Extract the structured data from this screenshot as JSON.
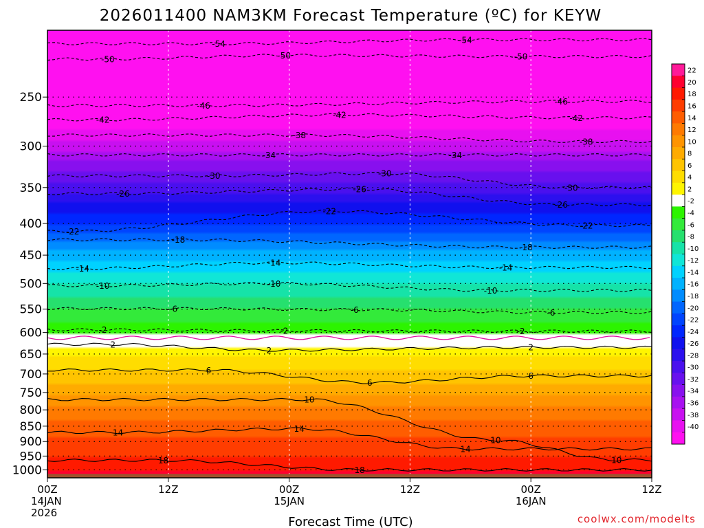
{
  "chart_data": {
    "type": "heatmap",
    "title": "2026011400 NAM3KM Forecast Temperature (ºC) for KEYW",
    "xlabel": "Forecast Time (UTC)",
    "ylabel": "",
    "credit": "coolwx.com/modelts",
    "x_axis": {
      "unit": "forecast hours",
      "range": [
        0,
        60
      ],
      "ticks": [
        {
          "hour": 0,
          "lines": [
            "00Z",
            "14JAN",
            "2026"
          ]
        },
        {
          "hour": 12,
          "lines": [
            "12Z"
          ]
        },
        {
          "hour": 24,
          "lines": [
            "00Z",
            "15JAN"
          ]
        },
        {
          "hour": 36,
          "lines": [
            "12Z"
          ]
        },
        {
          "hour": 48,
          "lines": [
            "00Z",
            "16JAN"
          ]
        },
        {
          "hour": 60,
          "lines": [
            "12Z"
          ]
        }
      ]
    },
    "y_axis": {
      "unit": "hPa",
      "scale": "log",
      "range": [
        1030,
        195
      ],
      "ticks": [
        250,
        300,
        350,
        400,
        450,
        500,
        550,
        600,
        650,
        700,
        750,
        800,
        850,
        900,
        950,
        1000
      ]
    },
    "surface_pressure_hPa": 1015,
    "levels_hPa": [
      195,
      200,
      250,
      300,
      350,
      400,
      450,
      500,
      550,
      600,
      650,
      700,
      750,
      800,
      850,
      900,
      950,
      1000,
      1015
    ],
    "temperature_profile_C": [
      -56,
      -55,
      -46,
      -37,
      -29,
      -22,
      -15,
      -10,
      -6,
      -2.2,
      3.5,
      6.5,
      9.5,
      12.5,
      15,
      16.5,
      18,
      20,
      21
    ],
    "colorbar": {
      "labels": [
        22,
        20,
        18,
        16,
        14,
        12,
        10,
        8,
        6,
        4,
        2,
        -2,
        -4,
        -6,
        -8,
        -10,
        -12,
        -14,
        -16,
        -18,
        -20,
        -22,
        -24,
        -26,
        -28,
        -30,
        -32,
        -34,
        -36,
        -38,
        -40
      ],
      "colors": [
        "#ff1a99",
        "#ff0030",
        "#ff1a00",
        "#ff3d00",
        "#ff5d00",
        "#ff7a00",
        "#ff9400",
        "#ffab00",
        "#ffc400",
        "#ffdd00",
        "#fff500",
        "#ffffff",
        "#2cf400",
        "#33ea3a",
        "#26e06e",
        "#16e3a8",
        "#10e6d7",
        "#00d2ff",
        "#00b2ff",
        "#008cff",
        "#0066ff",
        "#0044ff",
        "#0026ff",
        "#1010ee",
        "#2c10ee",
        "#4a10ee",
        "#6810ee",
        "#8810ee",
        "#a810f0",
        "#c810f0",
        "#e810f0",
        "#ff10f0"
      ]
    },
    "contour_labels": [
      {
        "value": "-54",
        "hour": 17.0,
        "p": 205
      },
      {
        "value": "-54",
        "hour": 41.5,
        "p": 202
      },
      {
        "value": "-50",
        "hour": 6.0,
        "p": 217
      },
      {
        "value": "-50",
        "hour": 23.5,
        "p": 214
      },
      {
        "value": "-50",
        "hour": 47.0,
        "p": 215
      },
      {
        "value": "-46",
        "hour": 15.5,
        "p": 258
      },
      {
        "value": "-46",
        "hour": 51.0,
        "p": 254
      },
      {
        "value": "-42",
        "hour": 5.5,
        "p": 272
      },
      {
        "value": "-42",
        "hour": 29.0,
        "p": 267
      },
      {
        "value": "-42",
        "hour": 52.5,
        "p": 270
      },
      {
        "value": "-38",
        "hour": 25.0,
        "p": 288
      },
      {
        "value": "-38",
        "hour": 53.5,
        "p": 295
      },
      {
        "value": "-34",
        "hour": 22.0,
        "p": 310
      },
      {
        "value": "-34",
        "hour": 40.5,
        "p": 310
      },
      {
        "value": "-30",
        "hour": 16.5,
        "p": 335
      },
      {
        "value": "-30",
        "hour": 33.5,
        "p": 332
      },
      {
        "value": "-30",
        "hour": 52.0,
        "p": 350
      },
      {
        "value": "-26",
        "hour": 7.5,
        "p": 358
      },
      {
        "value": "-26",
        "hour": 31.0,
        "p": 352
      },
      {
        "value": "-26",
        "hour": 51.0,
        "p": 373
      },
      {
        "value": "-22",
        "hour": 2.5,
        "p": 412
      },
      {
        "value": "-22",
        "hour": 28.0,
        "p": 382
      },
      {
        "value": "-22",
        "hour": 53.5,
        "p": 403
      },
      {
        "value": "-18",
        "hour": 13.0,
        "p": 425
      },
      {
        "value": "-18",
        "hour": 47.5,
        "p": 437
      },
      {
        "value": "-14",
        "hour": 3.5,
        "p": 473
      },
      {
        "value": "-14",
        "hour": 22.5,
        "p": 463
      },
      {
        "value": "-14",
        "hour": 45.5,
        "p": 471
      },
      {
        "value": "-10",
        "hour": 5.5,
        "p": 504
      },
      {
        "value": "-10",
        "hour": 22.5,
        "p": 500
      },
      {
        "value": "-10",
        "hour": 44.0,
        "p": 513
      },
      {
        "value": "-6",
        "hour": 12.5,
        "p": 549
      },
      {
        "value": "-6",
        "hour": 30.5,
        "p": 551
      },
      {
        "value": "-6",
        "hour": 50.0,
        "p": 557
      },
      {
        "value": "-2",
        "hour": 5.5,
        "p": 594
      },
      {
        "value": "-2",
        "hour": 23.5,
        "p": 596
      },
      {
        "value": "-2",
        "hour": 47.0,
        "p": 597
      },
      {
        "value": "2",
        "hour": 6.5,
        "p": 627
      },
      {
        "value": "2",
        "hour": 22.0,
        "p": 641
      },
      {
        "value": "2",
        "hour": 48.0,
        "p": 634
      },
      {
        "value": "6",
        "hour": 16.0,
        "p": 690
      },
      {
        "value": "6",
        "hour": 32.0,
        "p": 723
      },
      {
        "value": "6",
        "hour": 48.0,
        "p": 705
      },
      {
        "value": "10",
        "hour": 26.0,
        "p": 770
      },
      {
        "value": "10",
        "hour": 44.5,
        "p": 895
      },
      {
        "value": "10",
        "hour": 56.5,
        "p": 964
      },
      {
        "value": "14",
        "hour": 7.0,
        "p": 870
      },
      {
        "value": "14",
        "hour": 25.0,
        "p": 858
      },
      {
        "value": "14",
        "hour": 41.5,
        "p": 925
      },
      {
        "value": "18",
        "hour": 11.5,
        "p": 965
      },
      {
        "value": "18",
        "hour": 31.0,
        "p": 1000
      }
    ]
  }
}
